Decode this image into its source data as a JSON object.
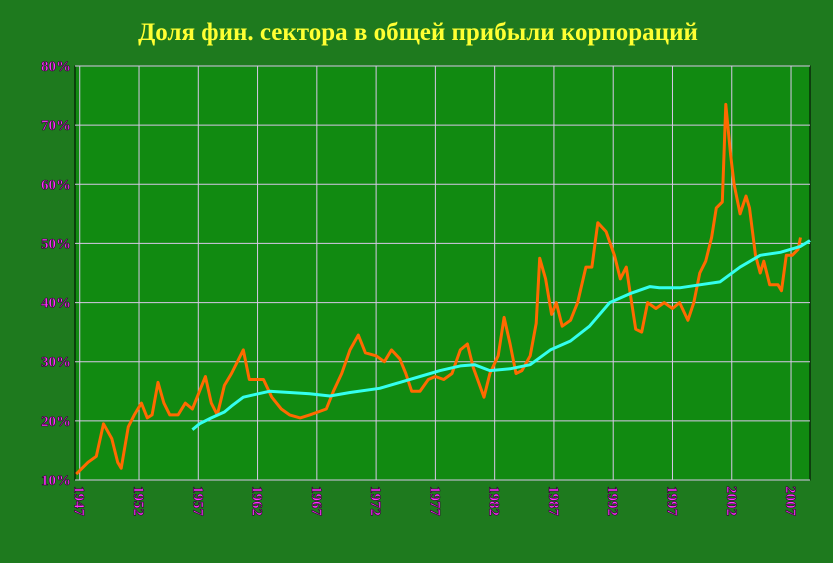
{
  "chart_data": {
    "type": "line",
    "title": "Доля фин. сектора в общей прибыли корпораций",
    "xlim": [
      1946.6,
      2008.6
    ],
    "ylim": [
      10,
      80
    ],
    "xticks": [
      1947,
      1952,
      1957,
      1962,
      1967,
      1972,
      1977,
      1982,
      1987,
      1992,
      1997,
      2002,
      2007
    ],
    "yticks": [
      {
        "value": 10,
        "label": "10%"
      },
      {
        "value": 20,
        "label": "20%"
      },
      {
        "value": 30,
        "label": "30%"
      },
      {
        "value": 40,
        "label": "40%"
      },
      {
        "value": 50,
        "label": "50%"
      },
      {
        "value": 60,
        "label": "60%"
      },
      {
        "value": 70,
        "label": "70%"
      },
      {
        "value": 80,
        "label": "80%"
      }
    ],
    "grid": true,
    "series": [
      {
        "color": "#ff6a00",
        "x": [
          1946.7,
          1947.7,
          1948.4,
          1949.0,
          1949.7,
          1950.2,
          1950.5,
          1951.1,
          1951.6,
          1952.2,
          1952.7,
          1953.1,
          1953.6,
          1954.1,
          1954.6,
          1955.3,
          1955.9,
          1956.5,
          1957.1,
          1957.6,
          1958.1,
          1958.6,
          1959.2,
          1959.8,
          1960.8,
          1961.3,
          1961.9,
          1962.5,
          1963.2,
          1964.0,
          1964.7,
          1965.6,
          1966.4,
          1967.1,
          1967.8,
          1968.4,
          1969.1,
          1969.8,
          1970.5,
          1971.1,
          1972.0,
          1972.7,
          1973.3,
          1974.0,
          1974.5,
          1975.0,
          1975.7,
          1976.4,
          1977.0,
          1977.7,
          1978.4,
          1979.1,
          1979.7,
          1980.2,
          1981.1,
          1981.6,
          1982.3,
          1982.8,
          1983.3,
          1983.8,
          1984.3,
          1985.0,
          1985.5,
          1985.8,
          1986.3,
          1986.8,
          1987.2,
          1987.7,
          1988.4,
          1989.0,
          1989.7,
          1990.2,
          1990.7,
          1991.4,
          1992.1,
          1992.6,
          1993.1,
          1993.4,
          1993.9,
          1994.4,
          1994.9,
          1995.6,
          1996.3,
          1997.0,
          1997.6,
          1998.3,
          1998.8,
          1999.3,
          1999.8,
          2000.3,
          2000.7,
          2001.2,
          2001.5,
          2001.9,
          2002.2,
          2002.7,
          2003.2,
          2003.5,
          2004.0,
          2004.4,
          2004.7,
          2005.2,
          2005.9,
          2006.2,
          2006.6,
          2007.1,
          2007.6,
          2007.8
        ],
        "values": [
          11,
          13,
          14,
          19.5,
          17,
          13,
          12,
          19,
          21,
          23,
          20.5,
          21,
          26.5,
          23,
          21,
          21,
          23,
          22,
          25,
          27.5,
          23,
          21,
          26,
          28,
          32,
          27,
          27,
          27,
          24,
          22,
          21,
          20.5,
          21,
          21.5,
          22,
          25,
          28,
          32,
          34.5,
          31.5,
          31,
          30,
          32,
          30.5,
          28,
          25,
          25,
          27,
          27.5,
          27,
          28,
          32,
          33,
          29,
          24,
          28,
          31,
          37.5,
          33,
          28,
          28.5,
          31,
          36.5,
          47.5,
          44,
          38,
          40,
          36,
          37,
          40,
          46,
          46,
          53.5,
          52,
          48,
          44,
          46,
          42,
          35.5,
          35,
          40,
          39,
          40,
          39,
          40,
          37,
          40,
          45,
          47,
          51,
          56,
          57,
          73.5,
          65,
          60,
          55,
          58,
          56,
          48,
          45,
          47,
          43,
          43,
          42,
          48,
          48,
          49,
          51
        ]
      },
      {
        "color": "#33ffee",
        "x": [
          1956.5,
          1957.1,
          1958.1,
          1959.2,
          1959.8,
          1960.8,
          1961.9,
          1963.0,
          1964.7,
          1966.4,
          1968.1,
          1969.8,
          1972.3,
          1974.0,
          1975.7,
          1977.4,
          1979.1,
          1980.3,
          1981.6,
          1983.3,
          1985.0,
          1986.7,
          1988.4,
          1990.0,
          1991.7,
          1993.4,
          1995.1,
          1995.9,
          1997.6,
          1999.3,
          2001.0,
          2002.7,
          2004.4,
          2006.1,
          2007.8,
          2008.6
        ],
        "values": [
          18.5,
          19.5,
          20.5,
          21.5,
          22.5,
          24,
          24.5,
          25,
          24.8,
          24.6,
          24.2,
          24.8,
          25.5,
          26.5,
          27.5,
          28.5,
          29.3,
          29.5,
          28.5,
          28.8,
          29.5,
          32,
          33.5,
          36,
          40,
          41.5,
          42.7,
          42.5,
          42.5,
          43,
          43.5,
          46,
          48,
          48.5,
          49.5,
          50.5
        ]
      }
    ]
  }
}
